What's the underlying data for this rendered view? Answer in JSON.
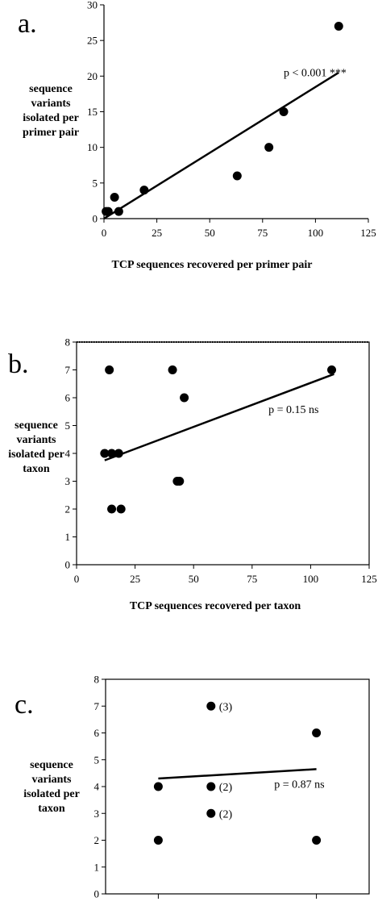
{
  "chart_data": [
    {
      "panel": "a.",
      "type": "scatter",
      "xlabel": "TCP sequences recovered per primer pair",
      "ylabel_lines": [
        "sequence",
        "variants",
        "isolated per",
        "primer pair"
      ],
      "xlim": [
        0,
        125
      ],
      "ylim": [
        0,
        30
      ],
      "xticks": [
        "0",
        "25",
        "50",
        "75",
        "100",
        "125"
      ],
      "yticks": [
        "0",
        "5",
        "10",
        "15",
        "20",
        "25",
        "30"
      ],
      "points": [
        [
          1,
          1
        ],
        [
          2,
          1
        ],
        [
          7,
          1
        ],
        [
          5,
          3
        ],
        [
          19,
          4
        ],
        [
          63,
          6
        ],
        [
          78,
          10
        ],
        [
          85,
          15
        ],
        [
          111,
          27
        ]
      ],
      "fit_line": [
        [
          0,
          0
        ],
        [
          111,
          20.5
        ]
      ],
      "annotation": "p < 0.001 ***",
      "annotation_pos": [
        85,
        20
      ],
      "frame": "open",
      "dotted_top": false
    },
    {
      "panel": "b.",
      "type": "scatter",
      "xlabel": "TCP sequences recovered per taxon",
      "ylabel_lines": [
        "sequence",
        "variants",
        "isolated per",
        "taxon"
      ],
      "xlim": [
        0,
        125
      ],
      "ylim": [
        0,
        8
      ],
      "xticks": [
        "0",
        "25",
        "50",
        "75",
        "100",
        "125"
      ],
      "yticks": [
        "0",
        "1",
        "2",
        "3",
        "4",
        "5",
        "6",
        "7",
        "8"
      ],
      "points": [
        [
          12,
          4
        ],
        [
          15,
          4
        ],
        [
          18,
          4
        ],
        [
          14,
          7
        ],
        [
          15,
          2
        ],
        [
          19,
          2
        ],
        [
          41,
          7
        ],
        [
          46,
          6
        ],
        [
          43,
          3
        ],
        [
          44,
          3
        ],
        [
          109,
          7
        ]
      ],
      "fit_line": [
        [
          12,
          3.75
        ],
        [
          110,
          6.85
        ]
      ],
      "annotation": "p = 0.15 ns",
      "annotation_pos": [
        82,
        5.45
      ],
      "frame": "box",
      "dotted_top": true
    },
    {
      "panel": "c.",
      "type": "scatter",
      "xlabel": "",
      "ylabel_lines": [
        "sequence",
        "variants",
        "isolated per",
        "taxon"
      ],
      "xlim": [
        0,
        1
      ],
      "ylim": [
        0,
        8
      ],
      "xticks": [],
      "yticks": [
        "0",
        "1",
        "2",
        "3",
        "4",
        "5",
        "6",
        "7",
        "8"
      ],
      "xtick_marks": [
        0.2,
        0.8
      ],
      "points": [
        [
          0.2,
          4
        ],
        [
          0.2,
          2
        ],
        [
          0.4,
          7
        ],
        [
          0.4,
          4
        ],
        [
          0.4,
          3
        ],
        [
          0.8,
          6
        ],
        [
          0.8,
          2
        ]
      ],
      "point_labels": [
        {
          "x": 0.4,
          "y": 7,
          "text": "(3)"
        },
        {
          "x": 0.4,
          "y": 4,
          "text": "(2)"
        },
        {
          "x": 0.4,
          "y": 3,
          "text": "(2)"
        }
      ],
      "fit_line": [
        [
          0.2,
          4.3
        ],
        [
          0.8,
          4.65
        ]
      ],
      "annotation": "p = 0.87 ns",
      "annotation_pos": [
        0.64,
        3.95
      ],
      "frame": "box",
      "dotted_top": false
    }
  ]
}
